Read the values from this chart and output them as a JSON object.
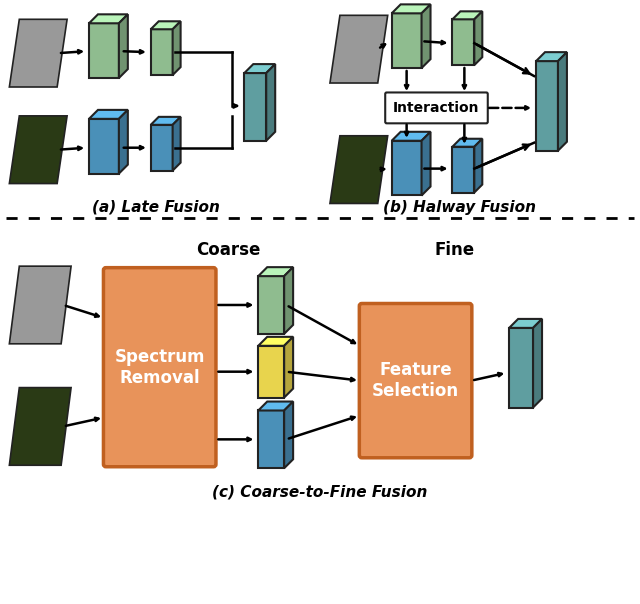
{
  "bg_color": "#ffffff",
  "green_color": "#8fbc8f",
  "blue_color": "#4a90b8",
  "teal_color": "#5f9ea0",
  "orange_color": "#e8935a",
  "yellow_color": "#e8d44d",
  "title_a": "(a) Late Fusion",
  "title_b": "(b) Halway Fusion",
  "title_c": "(c) Coarse-to-Fine Fusion",
  "label_coarse": "Coarse",
  "label_fine": "Fine",
  "spectrum_text": "Spectrum\nRemoval",
  "feature_text": "Feature\nSelection",
  "interaction_text": "Interaction"
}
